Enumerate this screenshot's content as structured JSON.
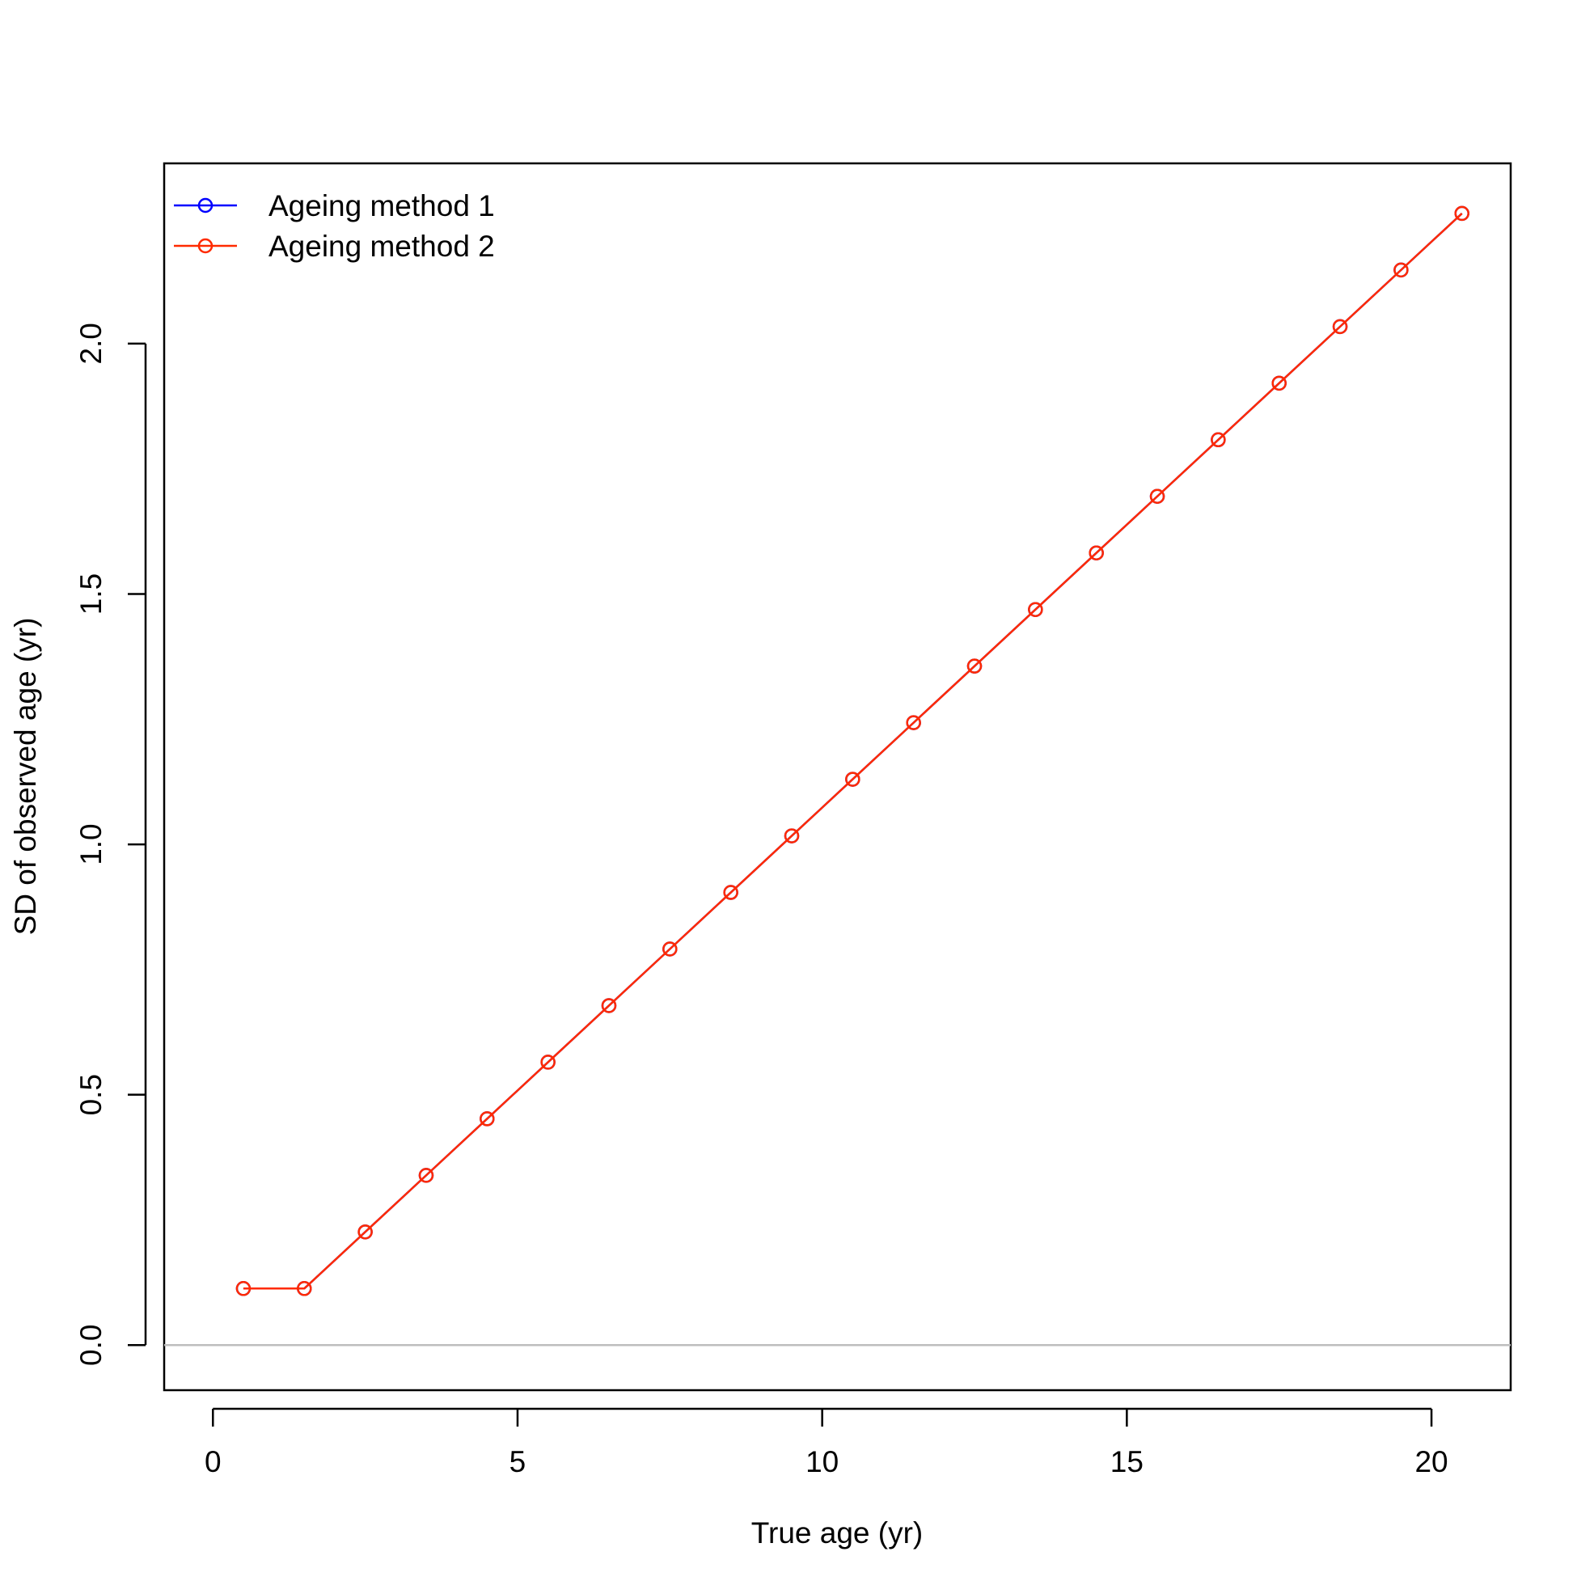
{
  "chart_data": {
    "type": "line",
    "title": "",
    "xlabel": "True age (yr)",
    "ylabel": "SD of observed age (yr)",
    "xlim": [
      -0.8,
      21.3
    ],
    "ylim": [
      -0.09,
      2.36
    ],
    "x_ticks": [
      0,
      5,
      10,
      15,
      20
    ],
    "y_ticks": [
      0.0,
      0.5,
      1.0,
      1.5,
      2.0
    ],
    "x_tick_labels": [
      "0",
      "5",
      "10",
      "15",
      "20"
    ],
    "y_tick_labels": [
      "0.0",
      "0.5",
      "1.0",
      "1.5",
      "2.0"
    ],
    "reference_line": {
      "y": 0,
      "color": "#bebebe"
    },
    "legend_position": "top-left",
    "series": [
      {
        "name": "Ageing method 1",
        "color": "#0000ff",
        "marker": "open-circle",
        "x": [
          0.5,
          1.5,
          2.5,
          3.5,
          4.5,
          5.5,
          6.5,
          7.5,
          8.5,
          9.5,
          10.5,
          11.5,
          12.5,
          13.5,
          14.5,
          15.5,
          16.5,
          17.5,
          18.5,
          19.5,
          20.5
        ],
        "y": [
          0.113,
          0.113,
          0.226,
          0.339,
          0.452,
          0.565,
          0.678,
          0.791,
          0.904,
          1.017,
          1.13,
          1.243,
          1.356,
          1.469,
          1.582,
          1.695,
          1.808,
          1.921,
          2.034,
          2.147,
          2.26
        ]
      },
      {
        "name": "Ageing method 2",
        "color": "#ff2a00",
        "marker": "open-circle",
        "x": [
          0.5,
          1.5,
          2.5,
          3.5,
          4.5,
          5.5,
          6.5,
          7.5,
          8.5,
          9.5,
          10.5,
          11.5,
          12.5,
          13.5,
          14.5,
          15.5,
          16.5,
          17.5,
          18.5,
          19.5,
          20.5
        ],
        "y": [
          0.113,
          0.113,
          0.226,
          0.339,
          0.452,
          0.565,
          0.678,
          0.791,
          0.904,
          1.017,
          1.13,
          1.243,
          1.356,
          1.469,
          1.582,
          1.695,
          1.808,
          1.921,
          2.034,
          2.147,
          2.26
        ]
      }
    ]
  }
}
